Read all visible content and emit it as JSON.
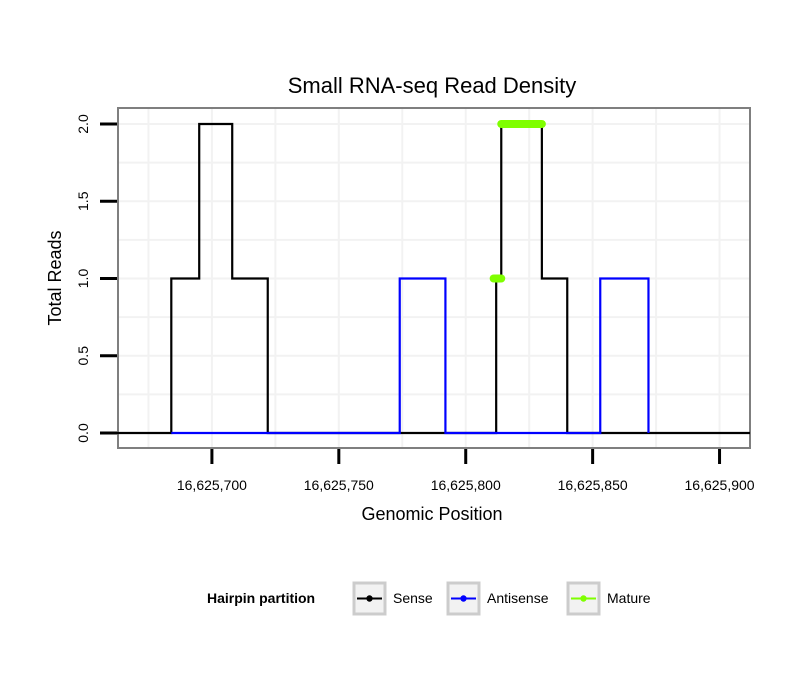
{
  "chart_data": {
    "type": "line",
    "title": "Small RNA-seq Read Density",
    "xlabel": "Genomic Position",
    "ylabel": "Total Reads",
    "xlim": [
      16625663,
      16625912
    ],
    "ylim": [
      0,
      2
    ],
    "x_ticks": [
      16625700,
      16625750,
      16625800,
      16625850,
      16625900
    ],
    "x_tick_labels": [
      "16,625,700",
      "16,625,750",
      "16,625,800",
      "16,625,850",
      "16,625,900"
    ],
    "y_ticks": [
      0,
      0.5,
      1,
      1.5,
      2
    ],
    "y_tick_labels": [
      "0.0",
      "0.5",
      "1.0",
      "1.5",
      "2.0"
    ],
    "grid": true,
    "series": [
      {
        "name": "Sense",
        "color": "#000000",
        "points": [
          [
            16625660,
            0
          ],
          [
            16625684,
            0
          ],
          [
            16625684,
            1
          ],
          [
            16625695,
            1
          ],
          [
            16625695,
            2
          ],
          [
            16625708,
            2
          ],
          [
            16625708,
            1
          ],
          [
            16625722,
            1
          ],
          [
            16625722,
            0
          ],
          [
            16625812,
            0
          ],
          [
            16625812,
            1
          ],
          [
            16625814,
            1
          ],
          [
            16625814,
            2
          ],
          [
            16625830,
            2
          ],
          [
            16625830,
            1
          ],
          [
            16625840,
            1
          ],
          [
            16625840,
            0
          ],
          [
            16625912,
            0
          ]
        ]
      },
      {
        "name": "Antisense",
        "color": "#0000ff",
        "points": [
          [
            16625684,
            0
          ],
          [
            16625774,
            0
          ],
          [
            16625774,
            1
          ],
          [
            16625792,
            1
          ],
          [
            16625792,
            0
          ],
          [
            16625853,
            0
          ],
          [
            16625853,
            1
          ],
          [
            16625872,
            1
          ],
          [
            16625872,
            0
          ]
        ]
      },
      {
        "name": "Mature",
        "color": "#7fff00",
        "segments": [
          {
            "x": [
              16625811,
              16625814
            ],
            "y": 1
          },
          {
            "x": [
              16625814,
              16625830
            ],
            "y": 2
          }
        ]
      }
    ],
    "legend": {
      "title": "Hairpin partition",
      "position": "bottom",
      "items": [
        {
          "label": "Sense",
          "color": "#000000"
        },
        {
          "label": "Antisense",
          "color": "#0000ff"
        },
        {
          "label": "Mature",
          "color": "#7fff00"
        }
      ]
    }
  }
}
